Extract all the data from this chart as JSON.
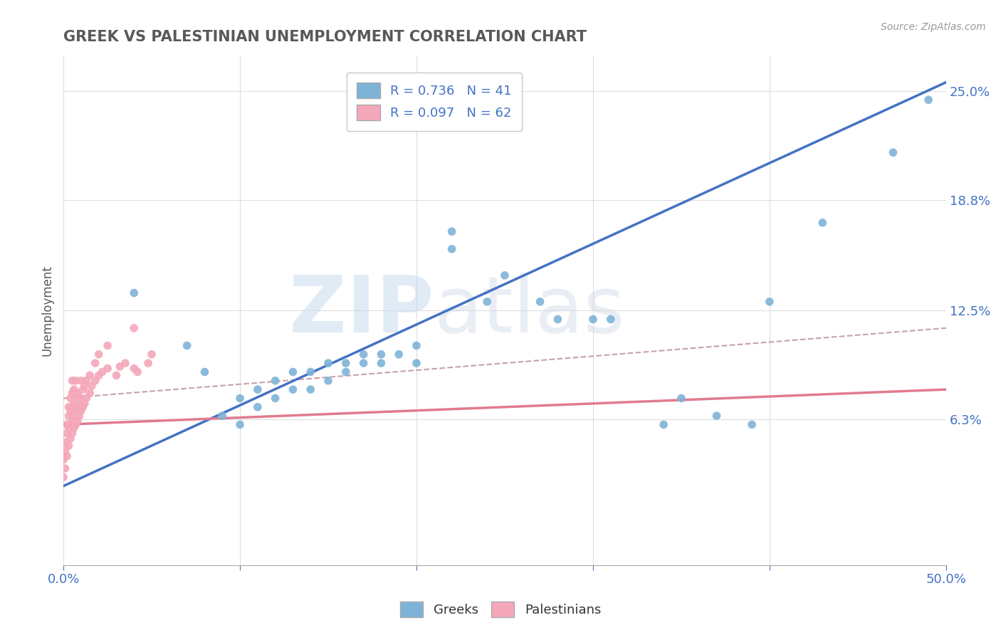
{
  "title": "GREEK VS PALESTINIAN UNEMPLOYMENT CORRELATION CHART",
  "source_text": "Source: ZipAtlas.com",
  "ylabel": "Unemployment",
  "xlim": [
    0,
    0.5
  ],
  "ylim": [
    -0.02,
    0.27
  ],
  "yticks": [
    0.063,
    0.125,
    0.188,
    0.25
  ],
  "ytick_labels": [
    "6.3%",
    "12.5%",
    "18.8%",
    "25.0%"
  ],
  "xticks": [
    0.0,
    0.1,
    0.2,
    0.3,
    0.4,
    0.5
  ],
  "xtick_labels": [
    "0.0%",
    "",
    "",
    "",
    "",
    "50.0%"
  ],
  "greek_color": "#7EB3D8",
  "palestinian_color": "#F4A7B9",
  "greek_scatter": [
    [
      0.04,
      0.135
    ],
    [
      0.07,
      0.105
    ],
    [
      0.08,
      0.09
    ],
    [
      0.09,
      0.065
    ],
    [
      0.1,
      0.06
    ],
    [
      0.1,
      0.075
    ],
    [
      0.11,
      0.07
    ],
    [
      0.11,
      0.08
    ],
    [
      0.12,
      0.075
    ],
    [
      0.12,
      0.085
    ],
    [
      0.13,
      0.08
    ],
    [
      0.13,
      0.09
    ],
    [
      0.14,
      0.08
    ],
    [
      0.14,
      0.09
    ],
    [
      0.15,
      0.085
    ],
    [
      0.15,
      0.095
    ],
    [
      0.16,
      0.09
    ],
    [
      0.16,
      0.095
    ],
    [
      0.17,
      0.095
    ],
    [
      0.17,
      0.1
    ],
    [
      0.18,
      0.095
    ],
    [
      0.18,
      0.1
    ],
    [
      0.19,
      0.1
    ],
    [
      0.2,
      0.095
    ],
    [
      0.2,
      0.105
    ],
    [
      0.22,
      0.16
    ],
    [
      0.22,
      0.17
    ],
    [
      0.24,
      0.13
    ],
    [
      0.25,
      0.145
    ],
    [
      0.27,
      0.13
    ],
    [
      0.28,
      0.12
    ],
    [
      0.3,
      0.12
    ],
    [
      0.31,
      0.12
    ],
    [
      0.34,
      0.06
    ],
    [
      0.35,
      0.075
    ],
    [
      0.37,
      0.065
    ],
    [
      0.39,
      0.06
    ],
    [
      0.4,
      0.13
    ],
    [
      0.43,
      0.175
    ],
    [
      0.47,
      0.215
    ],
    [
      0.49,
      0.245
    ]
  ],
  "palestinian_scatter": [
    [
      0.0,
      0.03
    ],
    [
      0.0,
      0.04
    ],
    [
      0.0,
      0.042
    ],
    [
      0.001,
      0.035
    ],
    [
      0.001,
      0.045
    ],
    [
      0.001,
      0.05
    ],
    [
      0.002,
      0.042
    ],
    [
      0.002,
      0.055
    ],
    [
      0.002,
      0.06
    ],
    [
      0.003,
      0.048
    ],
    [
      0.003,
      0.058
    ],
    [
      0.003,
      0.065
    ],
    [
      0.003,
      0.07
    ],
    [
      0.004,
      0.052
    ],
    [
      0.004,
      0.06
    ],
    [
      0.004,
      0.068
    ],
    [
      0.004,
      0.075
    ],
    [
      0.005,
      0.055
    ],
    [
      0.005,
      0.062
    ],
    [
      0.005,
      0.07
    ],
    [
      0.005,
      0.078
    ],
    [
      0.005,
      0.085
    ],
    [
      0.006,
      0.058
    ],
    [
      0.006,
      0.065
    ],
    [
      0.006,
      0.072
    ],
    [
      0.006,
      0.08
    ],
    [
      0.007,
      0.06
    ],
    [
      0.007,
      0.068
    ],
    [
      0.007,
      0.076
    ],
    [
      0.007,
      0.085
    ],
    [
      0.008,
      0.062
    ],
    [
      0.008,
      0.07
    ],
    [
      0.008,
      0.078
    ],
    [
      0.009,
      0.065
    ],
    [
      0.009,
      0.072
    ],
    [
      0.01,
      0.068
    ],
    [
      0.01,
      0.075
    ],
    [
      0.01,
      0.085
    ],
    [
      0.011,
      0.07
    ],
    [
      0.011,
      0.08
    ],
    [
      0.012,
      0.072
    ],
    [
      0.012,
      0.082
    ],
    [
      0.013,
      0.075
    ],
    [
      0.013,
      0.085
    ],
    [
      0.015,
      0.078
    ],
    [
      0.015,
      0.088
    ],
    [
      0.016,
      0.082
    ],
    [
      0.018,
      0.085
    ],
    [
      0.018,
      0.095
    ],
    [
      0.02,
      0.088
    ],
    [
      0.02,
      0.1
    ],
    [
      0.022,
      0.09
    ],
    [
      0.025,
      0.092
    ],
    [
      0.025,
      0.105
    ],
    [
      0.03,
      0.088
    ],
    [
      0.032,
      0.093
    ],
    [
      0.035,
      0.095
    ],
    [
      0.04,
      0.092
    ],
    [
      0.04,
      0.115
    ],
    [
      0.042,
      0.09
    ],
    [
      0.048,
      0.095
    ],
    [
      0.05,
      0.1
    ]
  ],
  "greek_line": {
    "x0": 0.0,
    "y0": 0.025,
    "x1": 0.5,
    "y1": 0.255
  },
  "palestinian_line": {
    "x0": 0.0,
    "y0": 0.06,
    "x1": 0.5,
    "y1": 0.08
  },
  "ref_line": {
    "x0": 0.0,
    "y0": 0.075,
    "x1": 0.5,
    "y1": 0.115
  },
  "greek_line_color": "#4472C4",
  "palestinian_line_color": "#E07B8F",
  "ref_line_color": "#C8A0A8",
  "legend_R_greek": "R = 0.736",
  "legend_N_greek": "N = 41",
  "legend_R_palestinian": "R = 0.097",
  "legend_N_palestinian": "N = 62",
  "watermark_zip": "ZIP",
  "watermark_atlas": "atlas",
  "title_color": "#595959",
  "axis_label_color": "#4472C4",
  "tick_color": "#4472C4"
}
